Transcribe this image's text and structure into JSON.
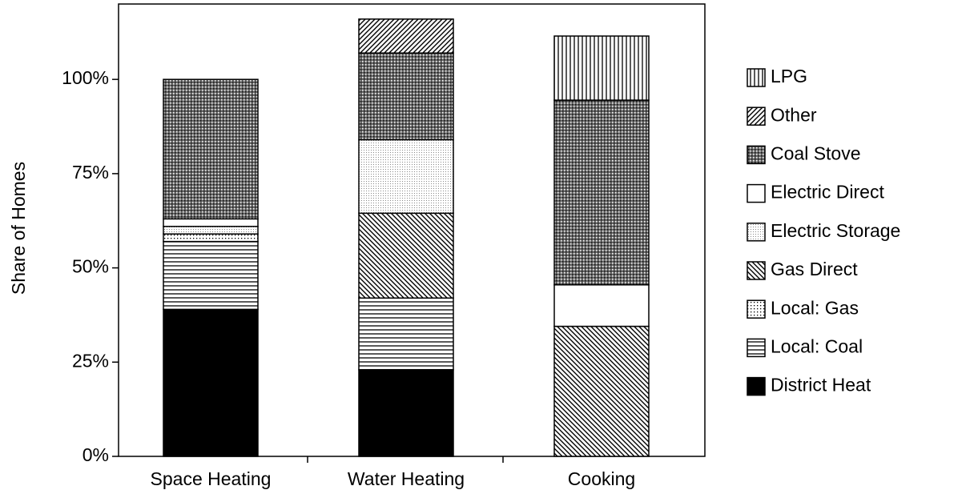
{
  "chart_data": {
    "type": "stacked-bar",
    "y_label": "Share of Homes",
    "categories": [
      "Space Heating",
      "Water Heating",
      "Cooking"
    ],
    "ylim": [
      0,
      120
    ],
    "yticks": [
      {
        "value": 0,
        "label": "0%"
      },
      {
        "value": 25,
        "label": "25%"
      },
      {
        "value": 50,
        "label": "50%"
      },
      {
        "value": 75,
        "label": "75%"
      },
      {
        "value": 100,
        "label": "100%"
      }
    ],
    "series": [
      {
        "name": "District Heat",
        "color": "#000000",
        "pattern": "solid",
        "values": [
          39,
          23,
          0
        ]
      },
      {
        "name": "Local: Coal",
        "color": "#000000",
        "pattern": "hlines",
        "values": [
          18,
          19,
          0
        ]
      },
      {
        "name": "Local: Gas",
        "color": "#000000",
        "pattern": "dots",
        "values": [
          2,
          0,
          0
        ]
      },
      {
        "name": "Gas Direct",
        "color": "#000000",
        "pattern": "backdiag",
        "values": [
          0,
          22.5,
          34.5
        ]
      },
      {
        "name": "Electric Storage",
        "color": "#000000",
        "pattern": "finedots",
        "values": [
          2,
          19.5,
          0
        ]
      },
      {
        "name": "Electric Direct",
        "color": "#000000",
        "pattern": "white",
        "values": [
          2,
          0,
          11
        ]
      },
      {
        "name": "Coal Stove",
        "color": "#000000",
        "pattern": "cross",
        "values": [
          37,
          23,
          49
        ]
      },
      {
        "name": "Other",
        "color": "#000000",
        "pattern": "diag",
        "values": [
          0,
          9,
          0
        ]
      },
      {
        "name": "LPG",
        "color": "#000000",
        "pattern": "vlines",
        "values": [
          0,
          0,
          17
        ]
      }
    ],
    "legend": "right"
  }
}
